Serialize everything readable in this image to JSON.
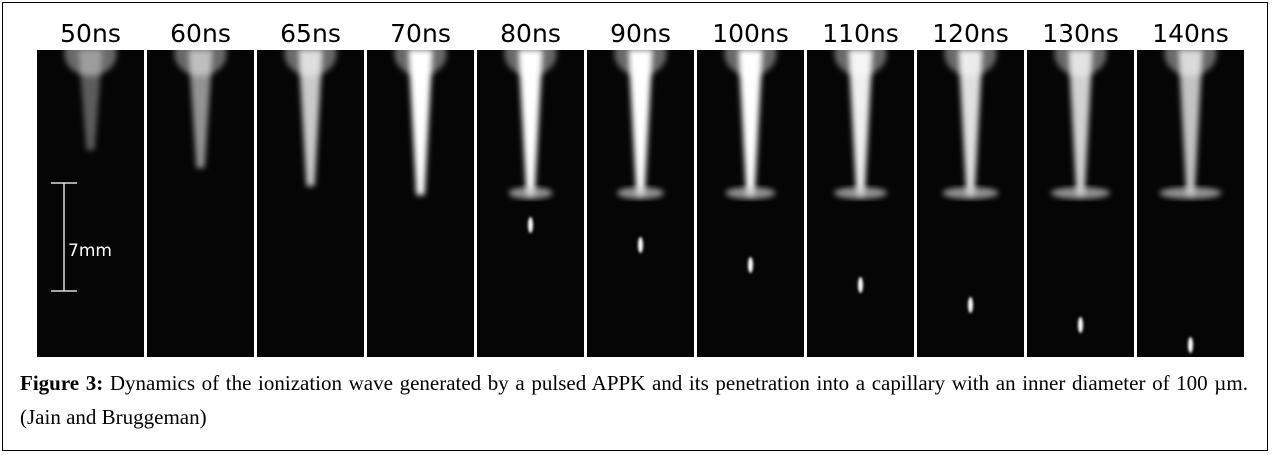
{
  "figure": {
    "frames": [
      "50ns",
      "60ns",
      "65ns",
      "70ns",
      "80ns",
      "90ns",
      "100ns",
      "110ns",
      "120ns",
      "130ns",
      "140ns"
    ],
    "scale_bar": "7mm",
    "caption": {
      "label": "Figure 3:",
      "text": "Dynamics of the ionization wave generated by a pulsed APPK and its penetration into a capillary with an inner diameter of 100 µm. (Jain and Bruggeman)"
    }
  }
}
